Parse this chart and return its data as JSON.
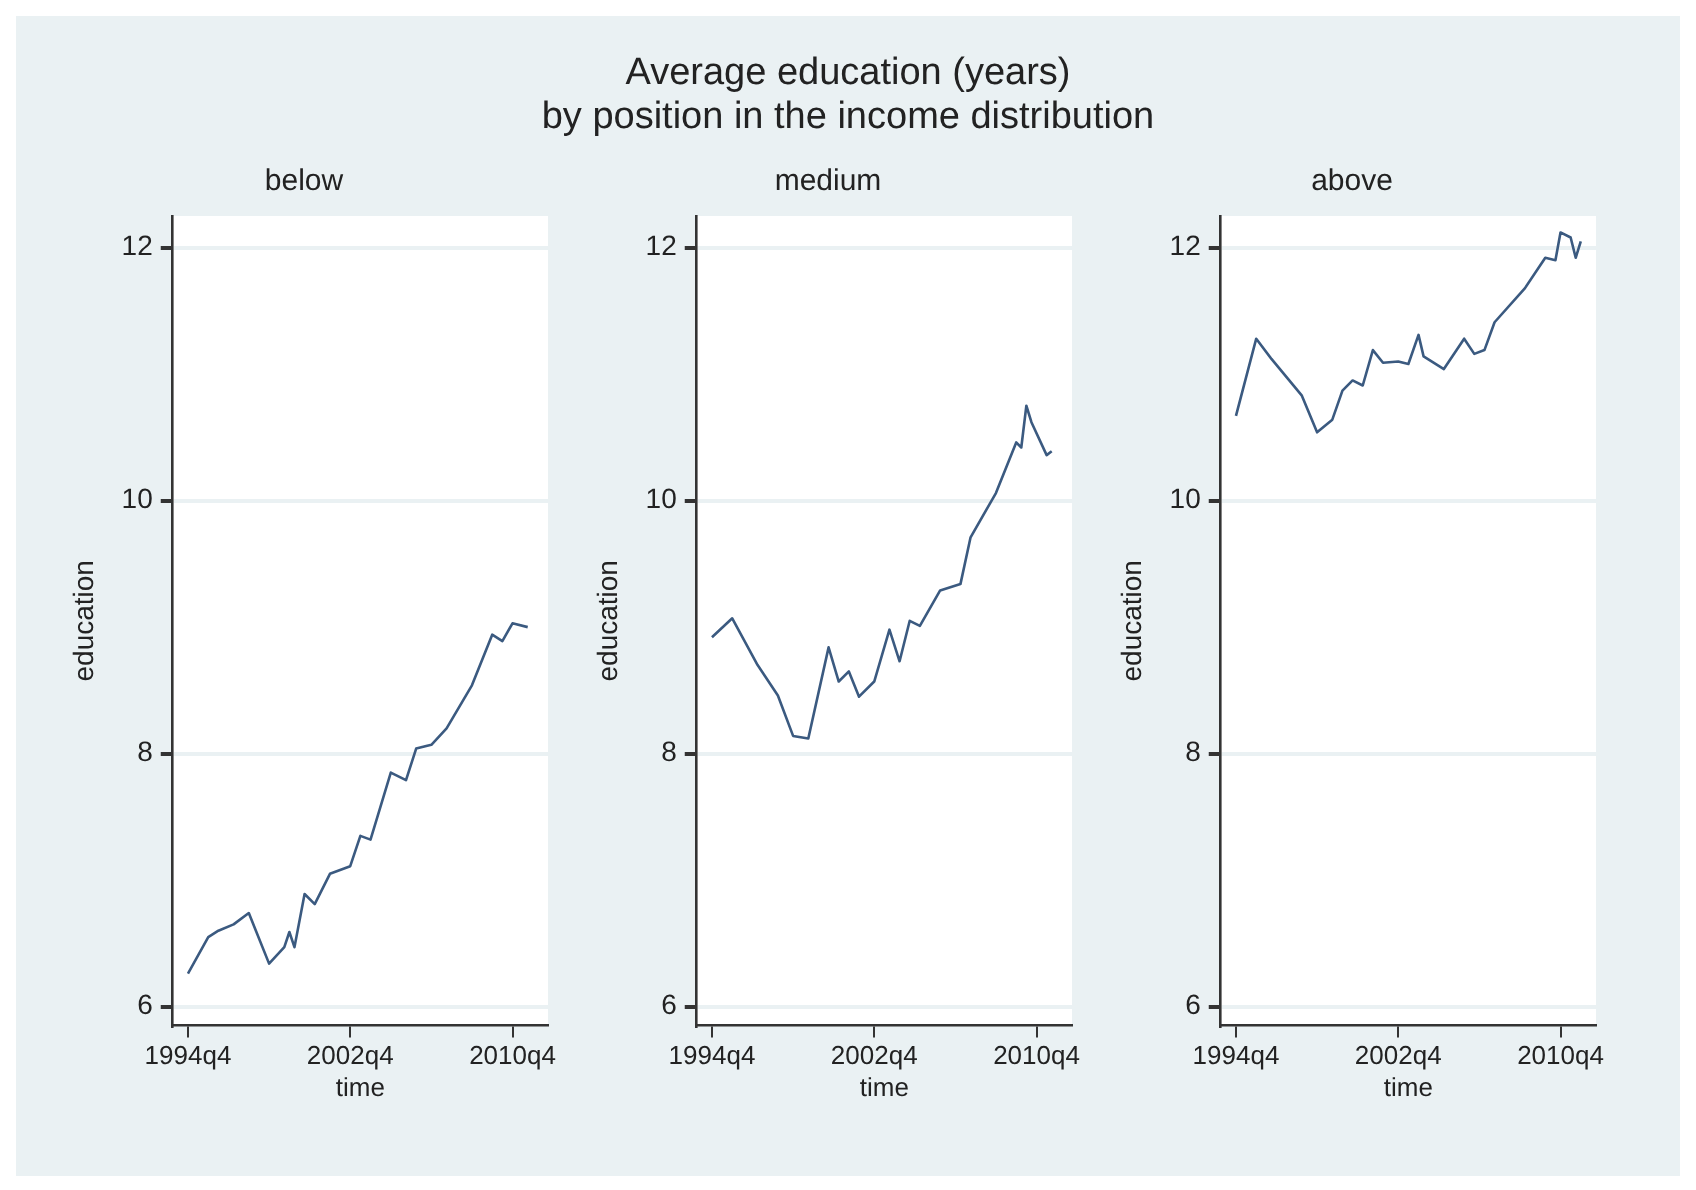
{
  "chart_data": [
    {
      "type": "line",
      "title": "below",
      "xlabel": "time",
      "ylabel": "education",
      "annotations": [
        "Average education (years)\nby position in the income distribution"
      ],
      "xlim": [
        "1994-01",
        "2012-07"
      ],
      "xticks": [
        {
          "value": "1994-10",
          "label": "1994q4"
        },
        {
          "value": "2002-10",
          "label": "2002q4"
        },
        {
          "value": "2010-10",
          "label": "2010q4"
        }
      ],
      "ylim": [
        5.85,
        12.25
      ],
      "yticks": [
        6,
        8,
        10,
        12
      ],
      "grid": "y",
      "series": [
        {
          "color": "#3b5a80",
          "x": [
            "1994-10",
            "1995-10",
            "1996-04",
            "1997-01",
            "1997-10",
            "1998-10",
            "1999-07",
            "1999-10",
            "2000-01",
            "2000-07",
            "2001-01",
            "2001-10",
            "2002-10",
            "2003-04",
            "2003-10",
            "2004-10",
            "2005-07",
            "2006-01",
            "2006-10",
            "2007-07",
            "2008-10",
            "2009-10",
            "2010-04",
            "2010-10",
            "2011-07"
          ],
          "values": [
            6.26,
            6.55,
            6.6,
            6.65,
            6.74,
            6.34,
            6.47,
            6.59,
            6.47,
            6.89,
            6.81,
            7.05,
            7.11,
            7.35,
            7.32,
            7.85,
            7.79,
            8.04,
            8.07,
            8.2,
            8.54,
            8.94,
            8.89,
            9.03,
            9.0
          ]
        }
      ]
    },
    {
      "type": "line",
      "title": "medium",
      "xlabel": "time",
      "ylabel": "education",
      "xlim": [
        "1994-01",
        "2012-07"
      ],
      "xticks": [
        {
          "value": "1994-10",
          "label": "1994q4"
        },
        {
          "value": "2002-10",
          "label": "2002q4"
        },
        {
          "value": "2010-10",
          "label": "2010q4"
        }
      ],
      "ylim": [
        5.85,
        12.25
      ],
      "yticks": [
        6,
        8,
        10,
        12
      ],
      "grid": "y",
      "series": [
        {
          "color": "#3b5a80",
          "x": [
            "1994-10",
            "1995-10",
            "1997-01",
            "1998-01",
            "1998-10",
            "1999-07",
            "2000-07",
            "2001-01",
            "2001-07",
            "2002-01",
            "2002-10",
            "2003-07",
            "2004-01",
            "2004-07",
            "2005-01",
            "2006-01",
            "2007-01",
            "2007-07",
            "2008-10",
            "2009-10",
            "2010-01",
            "2010-04",
            "2010-07",
            "2011-04",
            "2011-07"
          ],
          "values": [
            8.92,
            9.07,
            8.7,
            8.46,
            8.14,
            8.12,
            8.84,
            8.57,
            8.65,
            8.45,
            8.57,
            8.98,
            8.73,
            9.05,
            9.01,
            9.29,
            9.34,
            9.71,
            10.06,
            10.46,
            10.42,
            10.75,
            10.62,
            10.36,
            10.39
          ]
        }
      ]
    },
    {
      "type": "line",
      "title": "above",
      "xlabel": "time",
      "ylabel": "education",
      "xlim": [
        "1994-01",
        "2012-07"
      ],
      "xticks": [
        {
          "value": "1994-10",
          "label": "1994q4"
        },
        {
          "value": "2002-10",
          "label": "2002q4"
        },
        {
          "value": "2010-10",
          "label": "2010q4"
        }
      ],
      "ylim": [
        5.85,
        12.25
      ],
      "yticks": [
        6,
        8,
        10,
        12
      ],
      "grid": "y",
      "series": [
        {
          "color": "#3b5a80",
          "x": [
            "1994-10",
            "1995-10",
            "1996-07",
            "1998-01",
            "1998-10",
            "1999-07",
            "2000-01",
            "2000-07",
            "2001-01",
            "2001-07",
            "2002-01",
            "2002-10",
            "2003-04",
            "2003-10",
            "2004-01",
            "2005-01",
            "2006-01",
            "2006-07",
            "2007-01",
            "2007-07",
            "2009-01",
            "2010-01",
            "2010-07",
            "2010-10",
            "2011-04",
            "2011-07",
            "2011-10"
          ],
          "values": [
            10.67,
            11.28,
            11.12,
            10.83,
            10.54,
            10.64,
            10.87,
            10.95,
            10.91,
            11.19,
            11.09,
            11.1,
            11.08,
            11.31,
            11.14,
            11.04,
            11.28,
            11.16,
            11.19,
            11.41,
            11.68,
            11.92,
            11.9,
            12.12,
            12.08,
            11.92,
            12.05
          ]
        }
      ]
    }
  ]
}
